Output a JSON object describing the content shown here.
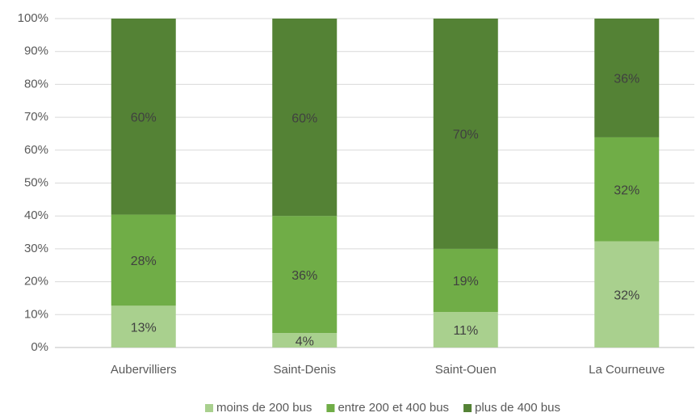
{
  "chart_data": {
    "type": "stacked_bar",
    "categories": [
      "Aubervilliers",
      "Saint-Denis",
      "Saint-Ouen",
      "La Courneuve"
    ],
    "series": [
      {
        "name": "moins de 200 bus",
        "color": "#a9d08e",
        "values": [
          12.7,
          4.4,
          10.8,
          32.3
        ],
        "value_labels": [
          "13%",
          "4%",
          "11%",
          "32%"
        ]
      },
      {
        "name": "entre 200 et 400 bus",
        "color": "#70ad47",
        "values": [
          27.7,
          35.6,
          19.2,
          31.6
        ],
        "value_labels": [
          "28%",
          "36%",
          "19%",
          "32%"
        ]
      },
      {
        "name": "plus de 400 bus",
        "color": "#548235",
        "values": [
          59.6,
          60,
          70,
          36.1
        ],
        "value_labels": [
          "60%",
          "60%",
          "70%",
          "36%"
        ]
      }
    ],
    "ylim": [
      0,
      100
    ],
    "yticks": [
      {
        "value": 0,
        "label": "0%"
      },
      {
        "value": 10,
        "label": "10%"
      },
      {
        "value": 20,
        "label": "20%"
      },
      {
        "value": 30,
        "label": "30%"
      },
      {
        "value": 40,
        "label": "40%"
      },
      {
        "value": 50,
        "label": "50%"
      },
      {
        "value": 60,
        "label": "60%"
      },
      {
        "value": 70,
        "label": "70%"
      },
      {
        "value": 80,
        "label": "80%"
      },
      {
        "value": 90,
        "label": "90%"
      },
      {
        "value": 100,
        "label": "100%"
      }
    ],
    "grid": true,
    "legend": "bottom"
  }
}
